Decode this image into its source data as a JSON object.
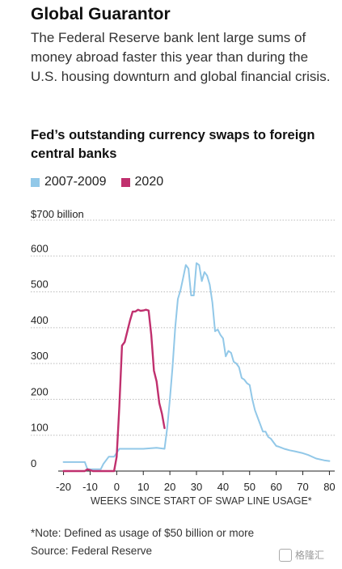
{
  "headline": "Global Guarantor",
  "dek": "The Federal Reserve bank lent large sums of money abroad faster this year than during the U.S. housing downturn and global financial crisis.",
  "note": "*Note: Defined as usage of $50 billion or more",
  "source": "Source: Federal Reserve",
  "watermark": "格隆汇",
  "chart_data": {
    "type": "line",
    "title": "Fed’s outstanding currency swaps to foreign central banks",
    "xlabel": "WEEKS SINCE START OF SWAP LINE USAGE*",
    "ylabel": "",
    "y_top_label": "$700 billion",
    "xlim": [
      -22,
      82
    ],
    "ylim": [
      0,
      700
    ],
    "x_ticks": [
      -20,
      -10,
      0,
      10,
      20,
      30,
      40,
      50,
      60,
      70,
      80
    ],
    "x_tick_labels": [
      "-20",
      "-10",
      "0",
      "10",
      "20",
      "30",
      "40",
      "50",
      "60",
      "70",
      "80"
    ],
    "y_ticks": [
      0,
      100,
      200,
      300,
      400,
      500,
      600,
      700
    ],
    "y_tick_labels": [
      "0",
      "100",
      "200",
      "300",
      "400",
      "500",
      "600",
      ""
    ],
    "grid": true,
    "legend_position": "top-left",
    "series": [
      {
        "name": "2007-2009",
        "color": "#92c8e8",
        "points": [
          [
            -20,
            25
          ],
          [
            -12,
            25
          ],
          [
            -11,
            5
          ],
          [
            -6,
            5
          ],
          [
            -5,
            20
          ],
          [
            -3,
            40
          ],
          [
            -1,
            40
          ],
          [
            1,
            62
          ],
          [
            5,
            62
          ],
          [
            10,
            62
          ],
          [
            15,
            65
          ],
          [
            18,
            62
          ],
          [
            19,
            120
          ],
          [
            20,
            200
          ],
          [
            21,
            290
          ],
          [
            22,
            400
          ],
          [
            23,
            480
          ],
          [
            24,
            505
          ],
          [
            25,
            540
          ],
          [
            26,
            575
          ],
          [
            27,
            565
          ],
          [
            28,
            490
          ],
          [
            29,
            490
          ],
          [
            30,
            580
          ],
          [
            31,
            575
          ],
          [
            32,
            530
          ],
          [
            33,
            555
          ],
          [
            34,
            545
          ],
          [
            35,
            520
          ],
          [
            36,
            470
          ],
          [
            37,
            390
          ],
          [
            38,
            395
          ],
          [
            39,
            380
          ],
          [
            40,
            370
          ],
          [
            41,
            320
          ],
          [
            42,
            335
          ],
          [
            43,
            330
          ],
          [
            44,
            305
          ],
          [
            45,
            300
          ],
          [
            46,
            290
          ],
          [
            47,
            260
          ],
          [
            48,
            255
          ],
          [
            49,
            245
          ],
          [
            50,
            240
          ],
          [
            51,
            200
          ],
          [
            52,
            170
          ],
          [
            53,
            150
          ],
          [
            54,
            130
          ],
          [
            55,
            110
          ],
          [
            56,
            110
          ],
          [
            57,
            95
          ],
          [
            58,
            90
          ],
          [
            59,
            80
          ],
          [
            60,
            70
          ],
          [
            61,
            68
          ],
          [
            62,
            65
          ],
          [
            63,
            62
          ],
          [
            64,
            60
          ],
          [
            65,
            58
          ],
          [
            67,
            55
          ],
          [
            70,
            50
          ],
          [
            72,
            45
          ],
          [
            75,
            35
          ],
          [
            78,
            30
          ],
          [
            80,
            28
          ]
        ]
      },
      {
        "name": "2020",
        "color": "#c0306e",
        "points": [
          [
            -20,
            0
          ],
          [
            -12,
            0
          ],
          [
            -11,
            5
          ],
          [
            -9,
            0
          ],
          [
            -1,
            0
          ],
          [
            0,
            40
          ],
          [
            1,
            180
          ],
          [
            2,
            350
          ],
          [
            3,
            360
          ],
          [
            4,
            390
          ],
          [
            5,
            420
          ],
          [
            6,
            445
          ],
          [
            7,
            445
          ],
          [
            8,
            450
          ],
          [
            9,
            447
          ],
          [
            10,
            448
          ],
          [
            11,
            450
          ],
          [
            12,
            448
          ],
          [
            13,
            380
          ],
          [
            14,
            280
          ],
          [
            15,
            250
          ],
          [
            16,
            190
          ],
          [
            17,
            160
          ],
          [
            18,
            120
          ]
        ]
      }
    ]
  }
}
